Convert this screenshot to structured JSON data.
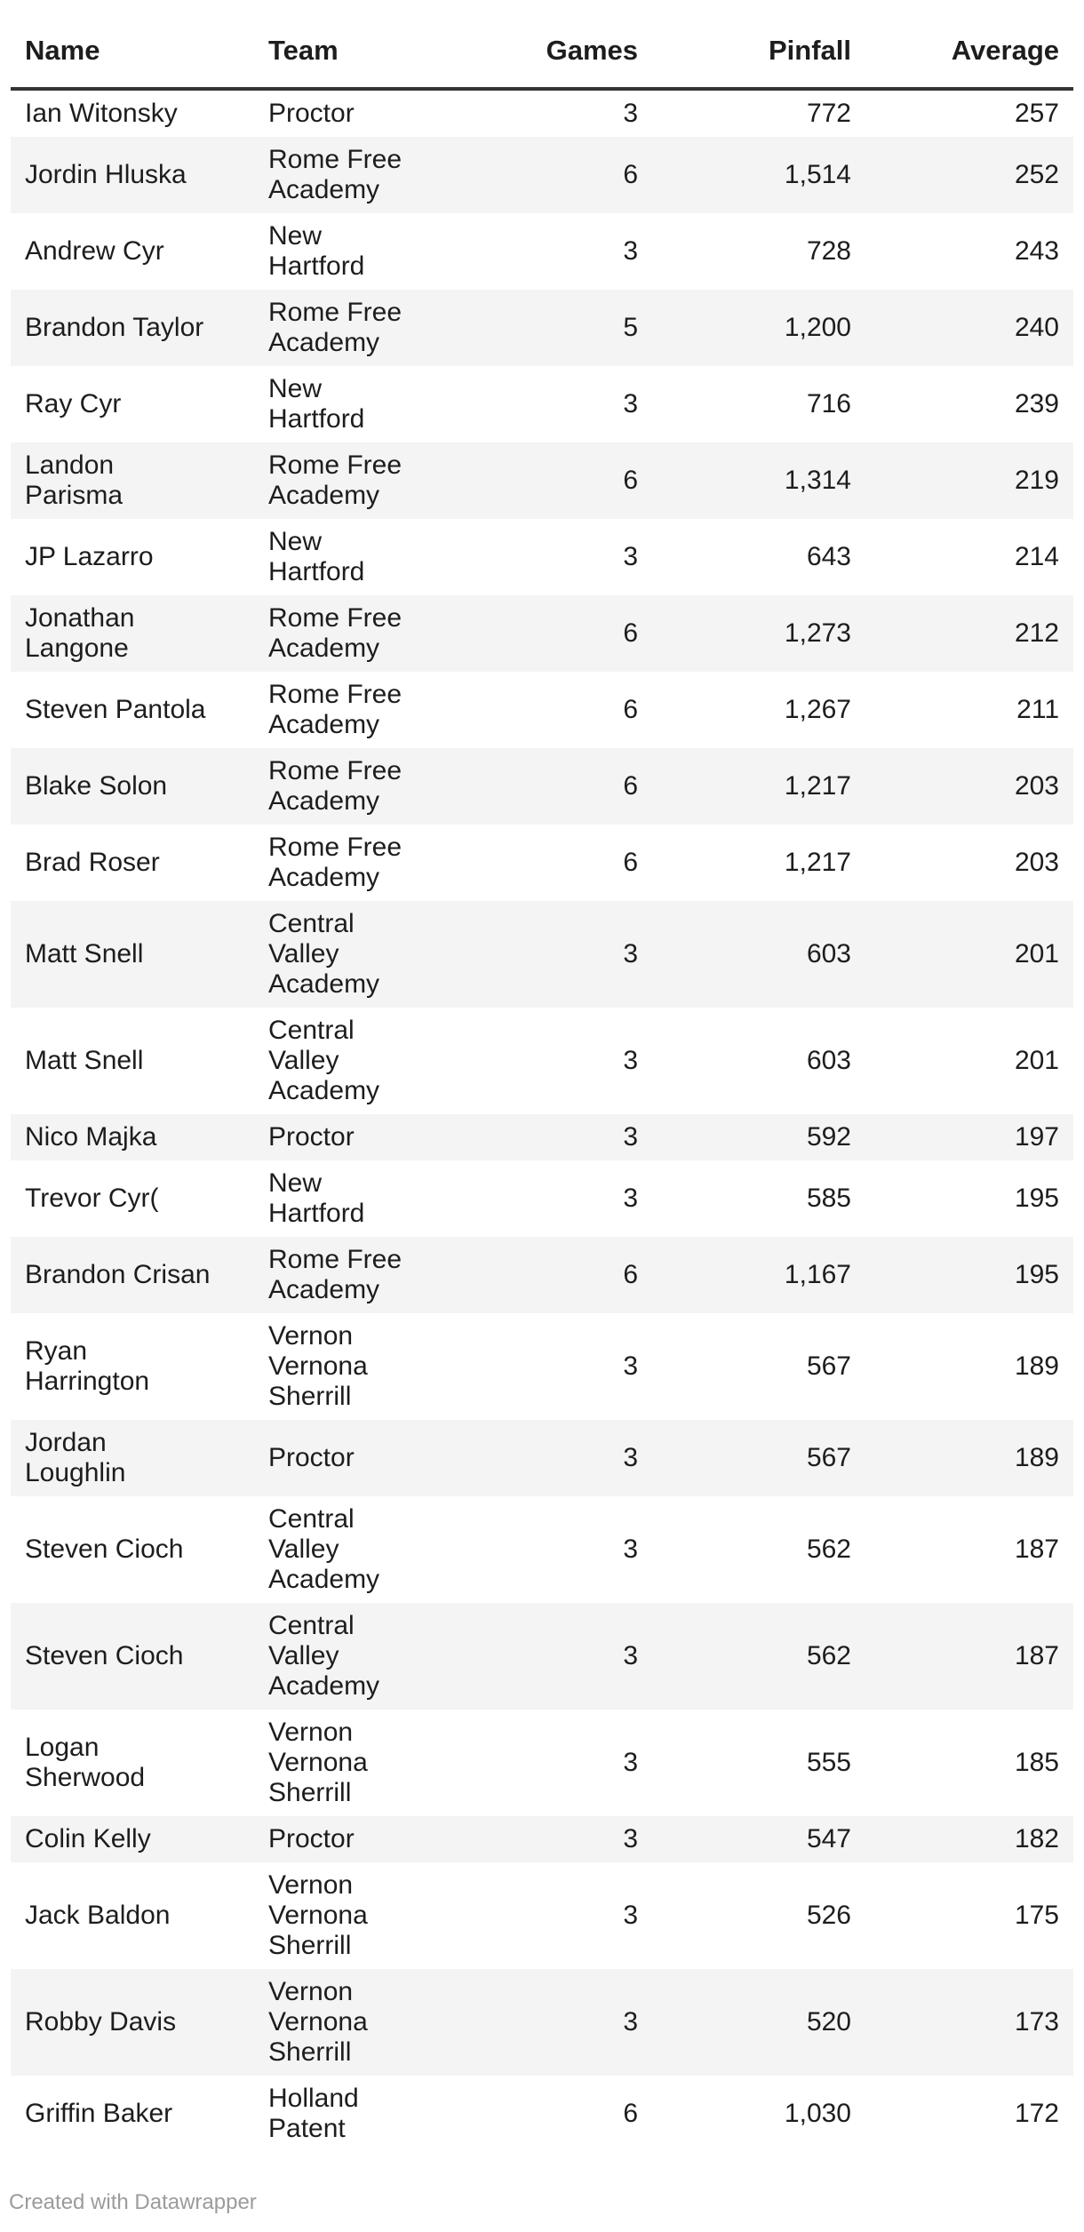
{
  "chart_data": {
    "type": "table",
    "columns": [
      "Name",
      "Team",
      "Games",
      "Pinfall",
      "Average"
    ],
    "column_align": [
      "left",
      "left",
      "right",
      "right",
      "right"
    ],
    "rows": [
      [
        "Ian Witonsky",
        "Proctor",
        "3",
        "772",
        "257"
      ],
      [
        "Jordin Hluska",
        "Rome Free\nAcademy",
        "6",
        "1,514",
        "252"
      ],
      [
        "Andrew Cyr",
        "New Hartford",
        "3",
        "728",
        "243"
      ],
      [
        "Brandon Taylor",
        "Rome Free\nAcademy",
        "5",
        "1,200",
        "240"
      ],
      [
        "Ray Cyr",
        "New Hartford",
        "3",
        "716",
        "239"
      ],
      [
        "Landon\nParisma",
        "Rome Free\nAcademy",
        "6",
        "1,314",
        "219"
      ],
      [
        "JP Lazarro",
        "New Hartford",
        "3",
        "643",
        "214"
      ],
      [
        "Jonathan\nLangone",
        "Rome Free\nAcademy",
        "6",
        "1,273",
        "212"
      ],
      [
        "Steven Pantola",
        "Rome Free\nAcademy",
        "6",
        "1,267",
        "211"
      ],
      [
        "Blake Solon",
        "Rome Free\nAcademy",
        "6",
        "1,217",
        "203"
      ],
      [
        "Brad Roser",
        "Rome Free\nAcademy",
        "6",
        "1,217",
        "203"
      ],
      [
        "Matt Snell",
        "Central Valley\nAcademy",
        "3",
        "603",
        "201"
      ],
      [
        "Matt Snell",
        "Central Valley\nAcademy",
        "3",
        "603",
        "201"
      ],
      [
        "Nico Majka",
        "Proctor",
        "3",
        "592",
        "197"
      ],
      [
        "Trevor Cyr(",
        "New Hartford",
        "3",
        "585",
        "195"
      ],
      [
        "Brandon Crisan",
        "Rome Free\nAcademy",
        "6",
        "1,167",
        "195"
      ],
      [
        "Ryan\nHarrington",
        "Vernon\nVernona\nSherrill",
        "3",
        "567",
        "189"
      ],
      [
        "Jordan\nLoughlin",
        "Proctor",
        "3",
        "567",
        "189"
      ],
      [
        "Steven Cioch",
        "Central Valley\nAcademy",
        "3",
        "562",
        "187"
      ],
      [
        "Steven Cioch",
        "Central Valley\nAcademy",
        "3",
        "562",
        "187"
      ],
      [
        "Logan\nSherwood",
        "Vernon\nVernona\nSherrill",
        "3",
        "555",
        "185"
      ],
      [
        "Colin Kelly",
        "Proctor",
        "3",
        "547",
        "182"
      ],
      [
        "Jack Baldon",
        "Vernon\nVernona\nSherrill",
        "3",
        "526",
        "175"
      ],
      [
        "Robby Davis",
        "Vernon\nVernona\nSherrill",
        "3",
        "520",
        "173"
      ],
      [
        "Griffin Baker",
        "Holland\nPatent",
        "6",
        "1,030",
        "172"
      ]
    ],
    "layout": {
      "zebra_stripes": true,
      "stripe_color": "#f4f4f4",
      "header_border_color": "#333333",
      "text_color": "#1d1d1d",
      "footer_text_color": "#9b9b9b"
    }
  },
  "footer": {
    "credit": "Created with Datawrapper"
  }
}
